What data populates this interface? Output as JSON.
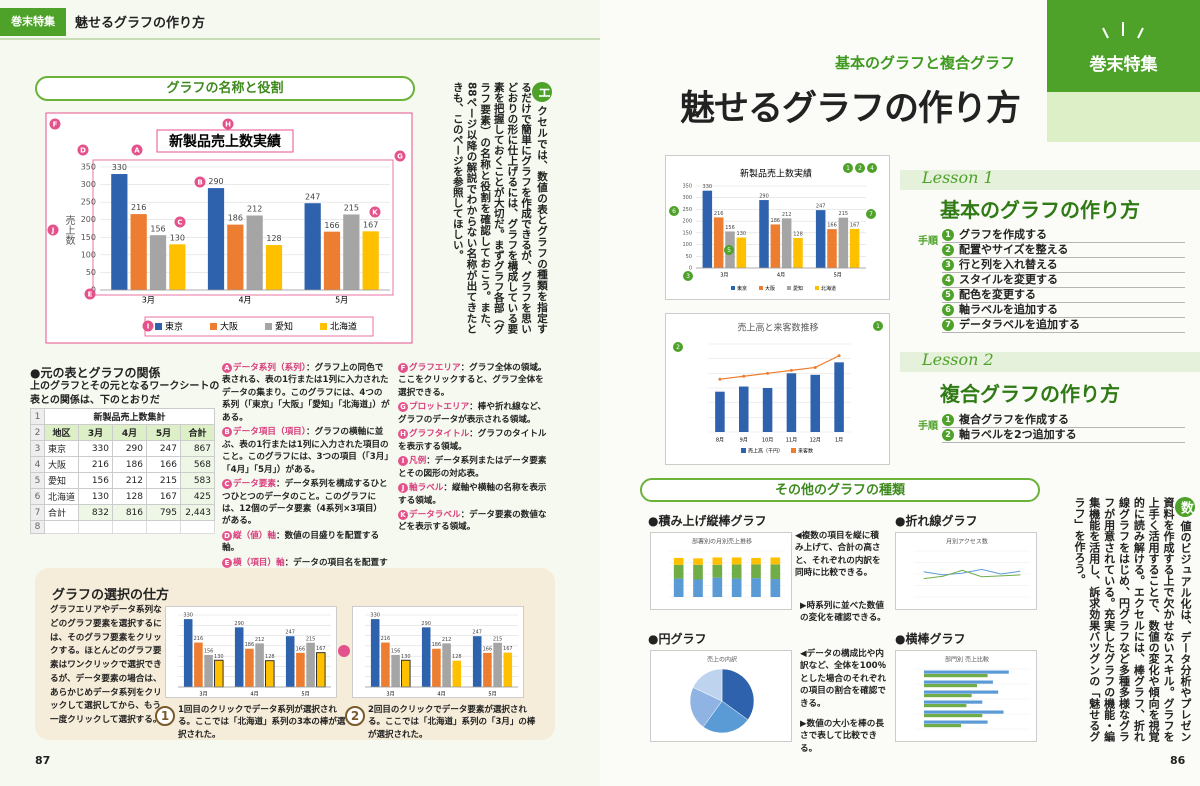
{
  "header": {
    "tag": "巻末特集",
    "title": "魅せるグラフの作り方"
  },
  "feature": {
    "tag": "巻末特集",
    "kicker": "基本のグラフと複合グラフ",
    "title": "魅せるグラフの作り方"
  },
  "intro": {
    "initial": "エ",
    "text": "クセルでは、数値の表とグラフの種類を指定するだけで簡単にグラフを作成できるが、グラフを思いどおりの形に仕上げるには、グラフを構成している要素を把握しておくことが大切だ。まずグラフ各部（グラフ要素）の名称と役割を確認しておこう。また、88ページ以降の解説でわからない名称が出てきたときも、このページを参照してほしい。"
  },
  "section1": {
    "heading": "グラフの名称と役割"
  },
  "main_chart": {
    "type": "bar",
    "title": "新製品売上数実績",
    "categories": [
      "3月",
      "4月",
      "5月"
    ],
    "series": [
      {
        "name": "東京",
        "color": "#2e62ad",
        "values": [
          330,
          290,
          247
        ]
      },
      {
        "name": "大阪",
        "color": "#ed7d31",
        "values": [
          216,
          186,
          166
        ]
      },
      {
        "name": "愛知",
        "color": "#a5a5a5",
        "values": [
          156,
          212,
          215
        ]
      },
      {
        "name": "北海道",
        "color": "#ffc000",
        "values": [
          130,
          128,
          167
        ]
      }
    ],
    "ylim": [
      0,
      350
    ],
    "yticks": [
      0,
      50,
      100,
      150,
      200,
      250,
      300,
      350
    ],
    "y_label": "売上数",
    "grid": true,
    "callouts": [
      "A",
      "B",
      "C",
      "D",
      "E",
      "F",
      "G",
      "H",
      "I",
      "J",
      "K"
    ]
  },
  "relation": {
    "heading": "●元の表とグラフの関係",
    "text": "上のグラフとその元となるワークシートの表との関係は、下のとおりだ"
  },
  "table": {
    "title": "新製品売上数集計",
    "row_numbers": [
      "1",
      "2",
      "3",
      "4",
      "5",
      "6",
      "7",
      "8"
    ],
    "header": [
      "地区",
      "3月",
      "4月",
      "5月",
      "合計"
    ],
    "rows": [
      [
        "東京",
        "330",
        "290",
        "247",
        "867"
      ],
      [
        "大阪",
        "216",
        "186",
        "166",
        "568"
      ],
      [
        "愛知",
        "156",
        "212",
        "215",
        "583"
      ],
      [
        "北海道",
        "130",
        "128",
        "167",
        "425"
      ],
      [
        "合計",
        "832",
        "816",
        "795",
        "2,443"
      ]
    ]
  },
  "definitions": [
    {
      "letter": "A",
      "term": "データ系列（系列）",
      "text": "：グラフ上の同色で表される、表の1行または1列に入力されたデータの集まり。このグラフには、4つの系列（「東京」「大阪」「愛知」「北海道」）がある。"
    },
    {
      "letter": "B",
      "term": "データ項目（項目）",
      "text": "：グラフの横軸に並ぶ、表の1行または1列に入力された項目のこと。このグラフには、3つの項目（「3月」「4月」「5月」）がある。"
    },
    {
      "letter": "C",
      "term": "データ要素",
      "text": "：データ系列を構成するひとつひとつのデータのこと。このグラフには、12個のデータ要素（4系列×3項目）がある。"
    },
    {
      "letter": "D",
      "term": "縦（値）軸",
      "text": "：数値の目盛りを配置する軸。"
    },
    {
      "letter": "E",
      "term": "横（項目）軸",
      "text": "：データの項目名を配置する軸。"
    },
    {
      "letter": "F",
      "term": "グラフエリア",
      "text": "：グラフ全体の領域。ここをクリックすると、グラフ全体を選択できる。"
    },
    {
      "letter": "G",
      "term": "プロットエリア",
      "text": "：棒や折れ線など、グラフのデータが表示される領域。"
    },
    {
      "letter": "H",
      "term": "グラフタイトル",
      "text": "：グラフのタイトルを表示する領域。"
    },
    {
      "letter": "I",
      "term": "凡例",
      "text": "：データ系列またはデータ要素とその図形の対応表。"
    },
    {
      "letter": "J",
      "term": "軸ラベル",
      "text": "：縦軸や横軸の名称を表示する領域。"
    },
    {
      "letter": "K",
      "term": "データラベル",
      "text": "：データ要素の数値などを表示する領域。"
    }
  ],
  "selection": {
    "heading": "グラフの選択の仕方",
    "text": "グラフエリアやデータ系列などのグラフ要素を選択するには、そのグラフ要素をクリックする。ほとんどのグラフ要素はワンクリックで選択できるが、データ要素の場合は、あらかじめデータ系列をクリックして選択してから、もう一度クリックして選択する。",
    "steps": [
      {
        "number": "1",
        "text": "1回目のクリックでデータ系列が選択される。ここでは「北海道」系列の3本の棒が選択された。"
      },
      {
        "number": "2",
        "text": "2回目のクリックでデータ要素が選択される。ここでは「北海道」系列の「3月」の棒が選択された。"
      }
    ]
  },
  "lesson1": {
    "label": "Lesson 1",
    "title": "基本のグラフの作り方",
    "steps_label": "手順",
    "steps": [
      "グラフを作成する",
      "配置やサイズを整える",
      "行と列を入れ替える",
      "スタイルを変更する",
      "配色を変更する",
      "軸ラベルを追加する",
      "データラベルを追加する"
    ],
    "step_numbers": [
      "1",
      "2",
      "3",
      "4",
      "5",
      "6",
      "7"
    ]
  },
  "lesson2": {
    "label": "Lesson 2",
    "title": "複合グラフの作り方",
    "steps_label": "手順",
    "steps": [
      "複合グラフを作成する",
      "軸ラベルを2つ追加する"
    ],
    "step_numbers": [
      "1",
      "2"
    ],
    "chart": {
      "type": "bar",
      "title": "売上高と来客数推移",
      "categories": [
        "8月",
        "9月",
        "10月",
        "11月",
        "12月",
        "1月"
      ],
      "series": [
        {
          "name": "売上高（千円）",
          "color": "#2e62ad",
          "values": [
            5500,
            6200,
            6000,
            8000,
            7800,
            9500
          ]
        },
        {
          "name": "来客数",
          "color": "#ed7d31",
          "axis": "y2",
          "values": [
            1800,
            1900,
            2000,
            2100,
            2200,
            2600
          ]
        }
      ],
      "ylim": [
        0,
        12000
      ],
      "y2lim": [
        0,
        3000
      ]
    }
  },
  "other": {
    "heading": "その他のグラフの種類",
    "types": [
      {
        "name": "●積み上げ縦棒グラフ",
        "note": "◀複数の項目を縦に積み上げて、合計の高さと、それぞれの内訳を同時に比較できる。",
        "chart": {
          "type": "stacked",
          "title": "部署別の月別売上推移",
          "series": [
            {
              "color": "#5b9bd5",
              "values": [
                40,
                38,
                42,
                40,
                41,
                39
              ]
            },
            {
              "color": "#70ad47",
              "values": [
                30,
                32,
                28,
                31,
                30,
                32
              ]
            },
            {
              "color": "#ffc000",
              "values": [
                15,
                14,
                16,
                15,
                14,
                15
              ]
            }
          ],
          "ylim": [
            0,
            100
          ]
        }
      },
      {
        "name": "●折れ線グラフ",
        "note": "▶時系列に並べた数値の変化を確認できる。",
        "chart": {
          "type": "line",
          "title": "月別アクセス数",
          "series": [
            {
              "color": "#5b9bd5",
              "values": [
                55,
                48,
                52,
                60,
                50,
                56
              ]
            },
            {
              "color": "#70ad47",
              "values": [
                40,
                45,
                58,
                44,
                46,
                48
              ]
            }
          ],
          "ylim": [
            0,
            100
          ]
        }
      },
      {
        "name": "●円グラフ",
        "note": "◀データの構成比や内訳など、全体を100％とした場合のそれぞれの項目の割合を確認できる。",
        "chart": {
          "type": "pie",
          "title": "売上の内訳",
          "values": [
            35,
            25,
            22,
            18
          ],
          "colors": [
            "#2e62ad",
            "#5b9bd5",
            "#8fb4e3",
            "#bdd3ee"
          ]
        }
      },
      {
        "name": "●横棒グラフ",
        "note": "▶数値の大小を棒の長さで表して比較できる。",
        "chart": {
          "type": "hbar",
          "title": "部門別 売上比較",
          "series": [
            {
              "color": "#5b9bd5",
              "values": [
                80,
                65,
                70,
                55,
                75,
                60
              ]
            },
            {
              "color": "#70ad47",
              "values": [
                60,
                50,
                45,
                40,
                55,
                35
              ]
            }
          ],
          "ylim": [
            0,
            100
          ]
        }
      }
    ]
  },
  "outro": {
    "initial": "数",
    "text": "値のビジュアル化は、データ分析やプレゼン資料を作成する上で欠かせないスキル。グラフを上手く活用することで、数値の変化や傾向を視覚的に読み解ける。エクセルには、棒グラフ、折れ線グラフをはじめ、円グラフなど多種多様なグラフが用意されている。充実したグラフの機能・編集機能を活用し、訴求効果バツグンの「魅せるグラフ」を作ろう。"
  },
  "page_numbers": {
    "left": "87",
    "right": "86"
  }
}
